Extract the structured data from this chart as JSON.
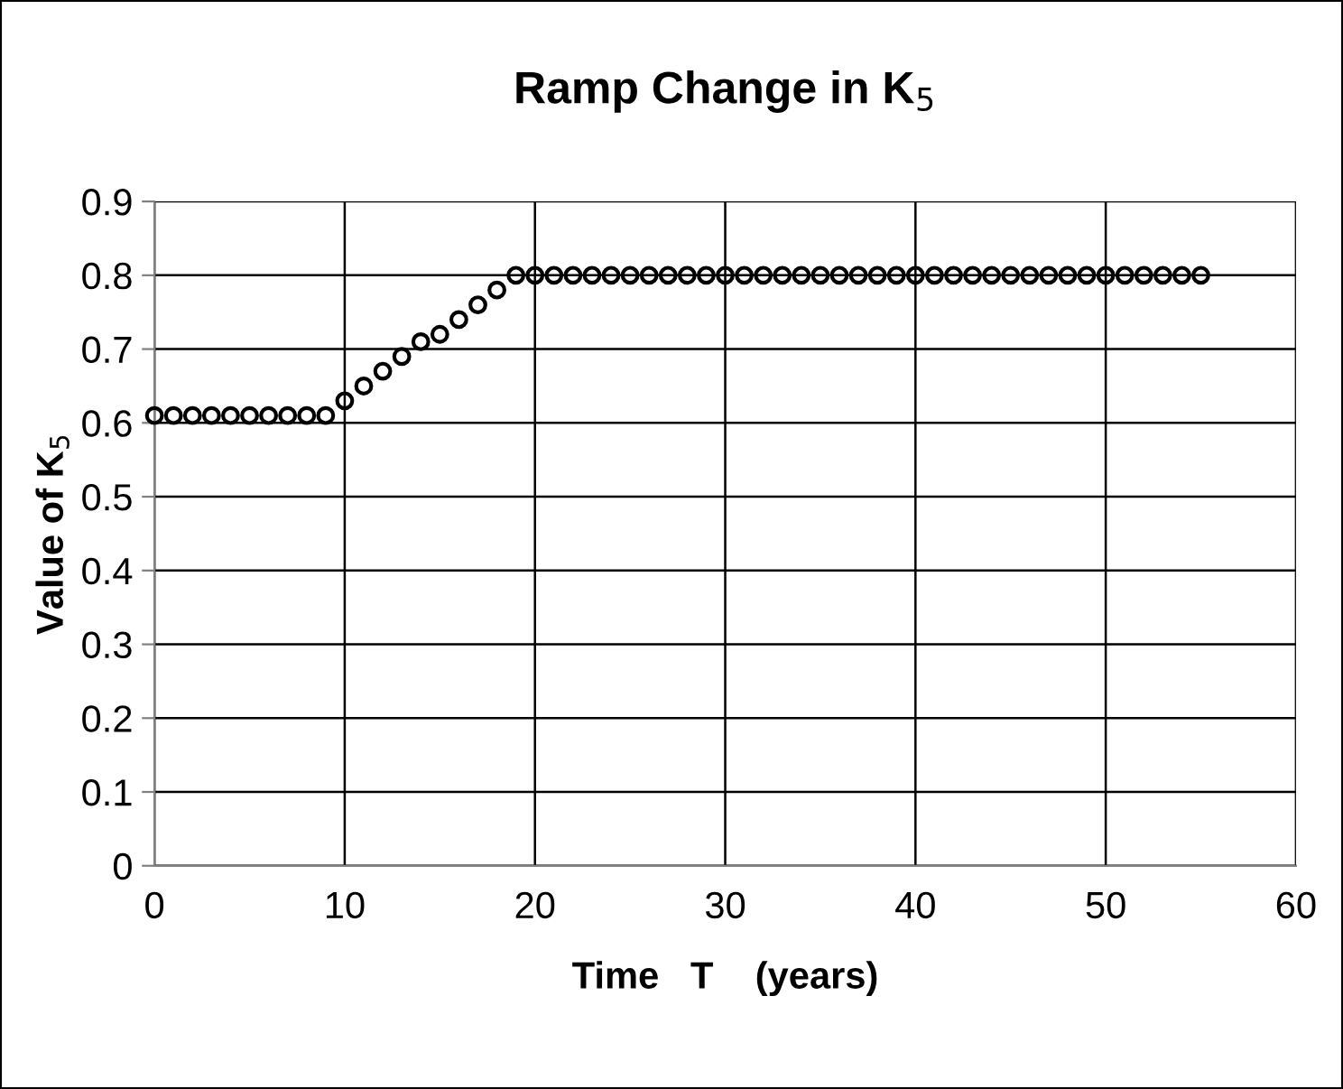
{
  "chart_data": {
    "type": "scatter",
    "title": "Ramp Change in K$_{5}$",
    "xlabel": "Time   T    (years)",
    "ylabel": "Value of K$_{5}$",
    "x": [
      0,
      1,
      2,
      3,
      4,
      5,
      6,
      7,
      8,
      9,
      10,
      11,
      12,
      13,
      14,
      15,
      16,
      17,
      18,
      19,
      20,
      21,
      22,
      23,
      24,
      25,
      26,
      27,
      28,
      29,
      30,
      31,
      32,
      33,
      34,
      35,
      36,
      37,
      38,
      39,
      40,
      41,
      42,
      43,
      44,
      45,
      46,
      47,
      48,
      49,
      50,
      51,
      52,
      53,
      54,
      55
    ],
    "series": [
      {
        "color": "#000000",
        "values": [
          0.61,
          0.61,
          0.61,
          0.61,
          0.61,
          0.61,
          0.61,
          0.61,
          0.61,
          0.61,
          0.63,
          0.65,
          0.67,
          0.69,
          0.71,
          0.72,
          0.74,
          0.76,
          0.78,
          0.8,
          0.8,
          0.8,
          0.8,
          0.8,
          0.8,
          0.8,
          0.8,
          0.8,
          0.8,
          0.8,
          0.8,
          0.8,
          0.8,
          0.8,
          0.8,
          0.8,
          0.8,
          0.8,
          0.8,
          0.8,
          0.8,
          0.8,
          0.8,
          0.8,
          0.8,
          0.8,
          0.8,
          0.8,
          0.8,
          0.8,
          0.8,
          0.8,
          0.8,
          0.8,
          0.8,
          0.8
        ]
      }
    ],
    "xlim": [
      0,
      60
    ],
    "xticks": [
      0,
      10,
      20,
      30,
      40,
      50,
      60
    ],
    "ylim": [
      0,
      0.9
    ],
    "yticks": [
      0,
      0.1,
      0.2,
      0.3,
      0.4,
      0.5,
      0.6,
      0.7,
      0.8,
      0.9
    ],
    "grid": true,
    "marker": "circle",
    "legend": false
  }
}
